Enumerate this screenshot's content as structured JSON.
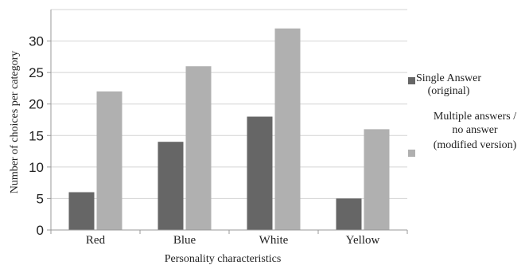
{
  "chart_data": {
    "type": "bar",
    "categories": [
      "Red",
      "Blue",
      "White",
      "Yellow"
    ],
    "series": [
      {
        "name": "Single Answer (original)",
        "legend_lines": [
          "Single Answer",
          "(original)"
        ],
        "values": [
          6,
          14,
          18,
          5
        ],
        "color": "#666666"
      },
      {
        "name": "Multiple answers / no answer (modified version)",
        "legend_lines": [
          "Multiple answers /",
          "no answer",
          "(modified version)"
        ],
        "values": [
          22,
          26,
          32,
          16
        ],
        "color": "#b0b0b0"
      }
    ],
    "xlabel": "Personality characteristics",
    "ylabel": "Number of choices per category",
    "ylim": [
      0,
      35
    ],
    "yticks": [
      0,
      5,
      10,
      15,
      20,
      25,
      30
    ],
    "grid": true,
    "legend_position": "right"
  }
}
